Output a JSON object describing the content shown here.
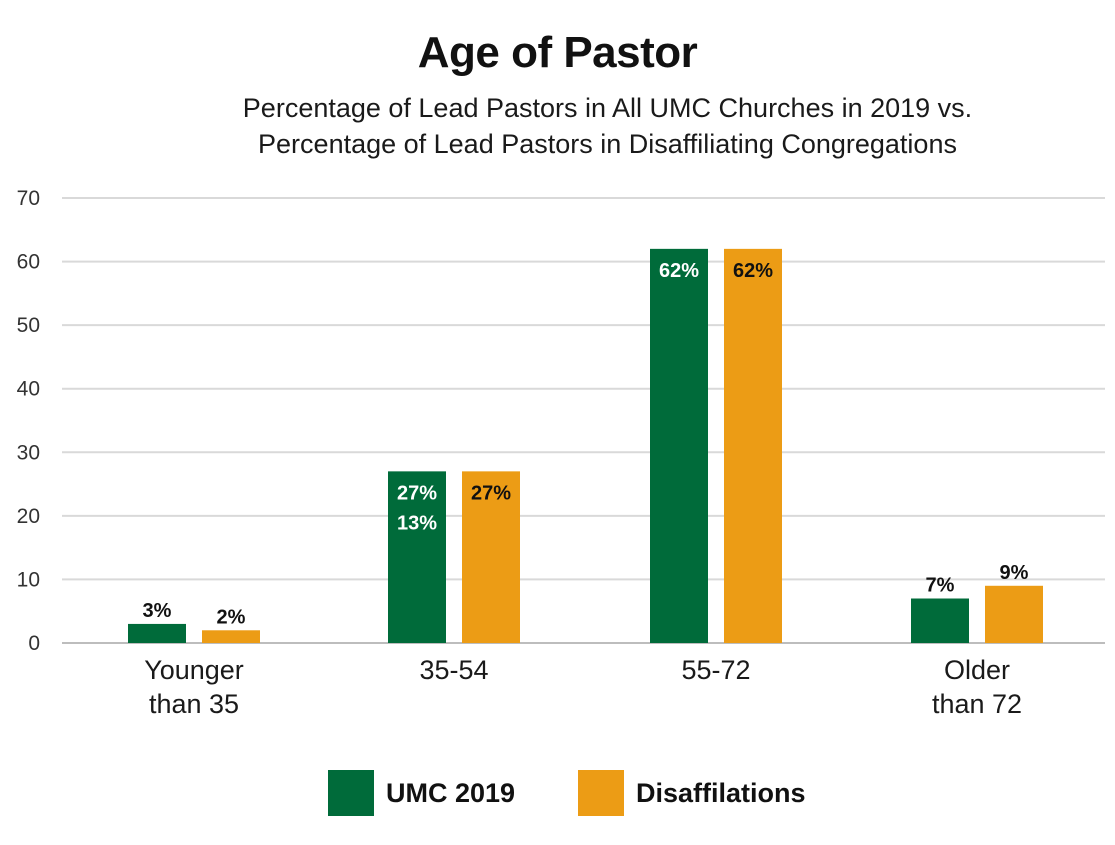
{
  "chart_data": {
    "type": "bar",
    "title": "Age of Pastor",
    "subtitle_lines": [
      "Percentage of Lead Pastors in All UMC Churches in 2019 vs.",
      "Percentage of Lead Pastors in Disaffiliating Congregations"
    ],
    "categories": [
      [
        "Younger",
        "than 35"
      ],
      [
        "35-54"
      ],
      [
        "55-72"
      ],
      [
        "Older",
        "than 72"
      ]
    ],
    "series": [
      {
        "name": "UMC 2019",
        "color": "#006b3a",
        "values": [
          3,
          27,
          62,
          7
        ],
        "labels": [
          "3%",
          "27%",
          "62%",
          "7%"
        ]
      },
      {
        "name": "Disaffilations",
        "color": "#ec9c15",
        "values": [
          2,
          27,
          62,
          9
        ],
        "labels": [
          "2%",
          "27%",
          "62%",
          "9%"
        ]
      }
    ],
    "extra_labels": [
      {
        "category_index": 1,
        "series_index": 0,
        "text": "13%"
      }
    ],
    "ylim": [
      0,
      70
    ],
    "yticks": [
      0,
      10,
      20,
      30,
      40,
      50,
      60,
      70
    ],
    "grid": true,
    "legend_position": "bottom"
  }
}
